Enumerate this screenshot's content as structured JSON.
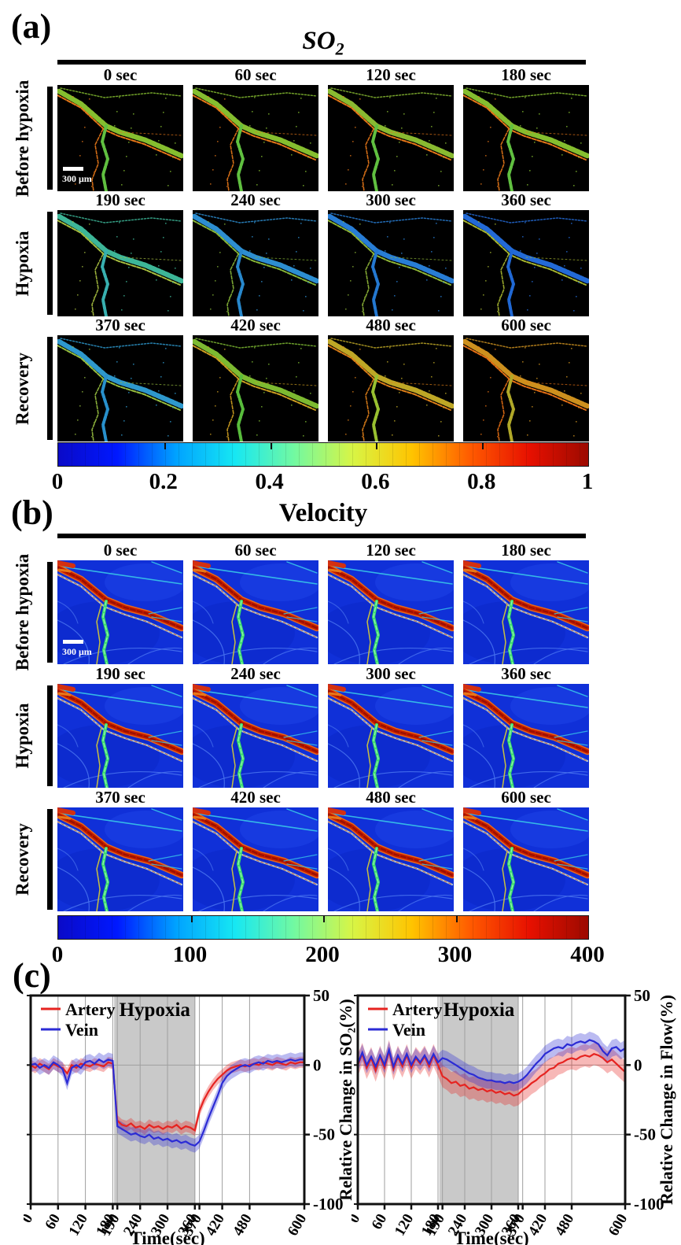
{
  "figure": {
    "colormap_stops": [
      "#0a0ac8",
      "#0018ff",
      "#00a2ff",
      "#16e7f3",
      "#71f9a2",
      "#d8f545",
      "#ffc400",
      "#ff5a00",
      "#e71000",
      "#9c0a00"
    ],
    "panel_a": {
      "label": "(a)",
      "title": "SO",
      "title_sub": "2",
      "scale_bar": "300 μm",
      "rows": [
        {
          "label": "Before hypoxia",
          "frames": [
            {
              "time": "0 sec",
              "vein": "#8cc832",
              "artery": "#e87818",
              "branch": "#60c040"
            },
            {
              "time": "60 sec",
              "vein": "#8cc832",
              "artery": "#e87818",
              "branch": "#60c040"
            },
            {
              "time": "120 sec",
              "vein": "#90c434",
              "artery": "#e87818",
              "branch": "#60c040"
            },
            {
              "time": "180 sec",
              "vein": "#8cc832",
              "artery": "#e87818",
              "branch": "#60c040"
            }
          ]
        },
        {
          "label": "Hypoxia",
          "frames": [
            {
              "time": "190 sec",
              "vein": "#40c0a0",
              "artery": "#a8c040",
              "branch": "#38b0b0"
            },
            {
              "time": "240 sec",
              "vein": "#2f96dc",
              "artery": "#88b838",
              "branch": "#2888cc"
            },
            {
              "time": "300 sec",
              "vein": "#2a84e0",
              "artery": "#90b838",
              "branch": "#2478d0"
            },
            {
              "time": "360 sec",
              "vein": "#2570e2",
              "artery": "#a8b830",
              "branch": "#2068d4"
            }
          ]
        },
        {
          "label": "Recovery",
          "frames": [
            {
              "time": "370 sec",
              "vein": "#30a0d8",
              "artery": "#98c040",
              "branch": "#2890cc"
            },
            {
              "time": "420 sec",
              "vein": "#84c434",
              "artery": "#d0a020",
              "branch": "#58bc3c"
            },
            {
              "time": "480 sec",
              "vein": "#c8b028",
              "artery": "#e08018",
              "branch": "#98c030"
            },
            {
              "time": "600 sec",
              "vein": "#d89820",
              "artery": "#e87014",
              "branch": "#b0a828"
            }
          ]
        }
      ],
      "colorbar": {
        "ticks": [
          "0",
          "0.2",
          "0.4",
          "0.6",
          "0.8",
          "1"
        ],
        "fractions": [
          0,
          0.2,
          0.4,
          0.6,
          0.8,
          1
        ]
      }
    },
    "panel_b": {
      "label": "(b)",
      "title": "Velocity",
      "scale_bar": "300 μm",
      "vessel_colors": {
        "background": "#1030d8",
        "patch": "#2248ea",
        "trunk_edge": "#e86818",
        "trunk_core": "#c41a00",
        "trunk_dark": "#8f1000",
        "companion": "#b8ccd0",
        "branch_green": "#3ae06a",
        "branch_yellow": "#c8c040",
        "cyan": "#38c8e8",
        "faint": "#4a74f0"
      },
      "rows": [
        {
          "label": "Before hypoxia",
          "frames": [
            {
              "time": "0 sec"
            },
            {
              "time": "60 sec"
            },
            {
              "time": "120 sec"
            },
            {
              "time": "180 sec"
            }
          ]
        },
        {
          "label": "Hypoxia",
          "frames": [
            {
              "time": "190 sec"
            },
            {
              "time": "240 sec"
            },
            {
              "time": "300 sec"
            },
            {
              "time": "360 sec"
            }
          ]
        },
        {
          "label": "Recovery",
          "frames": [
            {
              "time": "370 sec"
            },
            {
              "time": "420 sec"
            },
            {
              "time": "480 sec"
            },
            {
              "time": "600 sec"
            }
          ]
        }
      ],
      "colorbar": {
        "ticks": [
          "0",
          "100",
          "200",
          "300",
          "400"
        ],
        "fractions": [
          0,
          0.25,
          0.5,
          0.75,
          1
        ]
      }
    },
    "panel_c": {
      "label": "(c)"
    }
  },
  "chart_data": [
    {
      "type": "line",
      "xlabel": "Time(sec)",
      "ylabel": "Relative Change in SO₂(%)",
      "xlim": [
        0,
        600
      ],
      "ylim": [
        -100,
        50
      ],
      "xticks": [
        0,
        60,
        120,
        180,
        190,
        240,
        300,
        360,
        370,
        420,
        480,
        600
      ],
      "yticks": [
        50,
        0,
        -50,
        -100
      ],
      "gridlines_x": [
        60,
        120,
        180,
        190,
        240,
        300,
        360,
        370,
        420,
        480
      ],
      "gridlines_y": [
        0,
        -50
      ],
      "shaded_region": {
        "label": "Hypoxia",
        "x0": 183,
        "x1": 361,
        "color": "#c9c9c9"
      },
      "x_start": 0,
      "x_step": 10,
      "legend_position": "top-left",
      "series": [
        {
          "name": "Artery",
          "color": "#e62320",
          "band": 4,
          "values": [
            0,
            -2,
            1,
            -1,
            -3,
            1,
            -1,
            -2,
            -6,
            0,
            -2,
            1,
            0,
            -1,
            1,
            0,
            -1,
            2,
            1,
            -40,
            -43,
            -44,
            -42,
            -45,
            -44,
            -46,
            -43,
            -45,
            -44,
            -46,
            -44,
            -45,
            -43,
            -46,
            -44,
            -45,
            -47,
            -33,
            -25,
            -19,
            -14,
            -10,
            -7,
            -4,
            -2,
            -1,
            0,
            -1,
            0,
            1,
            0,
            2,
            1,
            0,
            2,
            1,
            0,
            2,
            1,
            2,
            2
          ]
        },
        {
          "name": "Vein",
          "color": "#2b2bd5",
          "band": 5,
          "values": [
            0,
            1,
            -2,
            0,
            -2,
            2,
            0,
            -3,
            -13,
            -2,
            0,
            -2,
            2,
            3,
            1,
            4,
            2,
            4,
            3,
            -44,
            -46,
            -48,
            -50,
            -49,
            -51,
            -52,
            -50,
            -53,
            -52,
            -54,
            -53,
            -55,
            -54,
            -56,
            -55,
            -57,
            -58,
            -55,
            -47,
            -38,
            -30,
            -22,
            -13,
            -8,
            -5,
            -3,
            -1,
            0,
            -1,
            1,
            2,
            1,
            3,
            2,
            3,
            2,
            3,
            4,
            3,
            4,
            4
          ]
        }
      ]
    },
    {
      "type": "line",
      "xlabel": "Time(sec)",
      "ylabel": "Relative Change in Flow(%)",
      "xlim": [
        0,
        600
      ],
      "ylim": [
        -100,
        50
      ],
      "xticks": [
        0,
        60,
        120,
        180,
        190,
        240,
        300,
        360,
        370,
        420,
        480,
        600
      ],
      "yticks": [
        50,
        0,
        -50,
        -100
      ],
      "gridlines_x": [
        60,
        120,
        180,
        190,
        240,
        300,
        360,
        370,
        420,
        480
      ],
      "gridlines_y": [
        0,
        -50
      ],
      "shaded_region": {
        "label": "Hypoxia",
        "x0": 183,
        "x1": 361,
        "color": "#c9c9c9"
      },
      "x_start": 0,
      "x_step": 10,
      "legend_position": "top-left",
      "series": [
        {
          "name": "Artery",
          "color": "#e62320",
          "band": 8,
          "values": [
            0,
            8,
            -2,
            5,
            -4,
            6,
            -2,
            10,
            -3,
            6,
            -1,
            7,
            -2,
            5,
            1,
            6,
            -1,
            7,
            0,
            -8,
            -10,
            -13,
            -12,
            -15,
            -14,
            -17,
            -16,
            -18,
            -17,
            -19,
            -18,
            -20,
            -19,
            -21,
            -20,
            -22,
            -21,
            -18,
            -16,
            -13,
            -11,
            -8,
            -6,
            -3,
            -2,
            1,
            2,
            4,
            5,
            4,
            6,
            7,
            6,
            8,
            7,
            5,
            2,
            4,
            1,
            -2,
            -5
          ]
        },
        {
          "name": "Vein",
          "color": "#2b2bd5",
          "band": 6,
          "values": [
            1,
            9,
            0,
            6,
            -1,
            7,
            0,
            11,
            -1,
            7,
            1,
            8,
            0,
            6,
            2,
            7,
            1,
            8,
            2,
            5,
            4,
            2,
            0,
            -2,
            -4,
            -6,
            -7,
            -9,
            -10,
            -11,
            -11,
            -12,
            -12,
            -13,
            -12,
            -13,
            -12,
            -10,
            -7,
            -3,
            1,
            4,
            8,
            10,
            12,
            13,
            12,
            15,
            14,
            16,
            17,
            16,
            18,
            17,
            15,
            10,
            7,
            12,
            13,
            10,
            12
          ]
        }
      ]
    }
  ]
}
